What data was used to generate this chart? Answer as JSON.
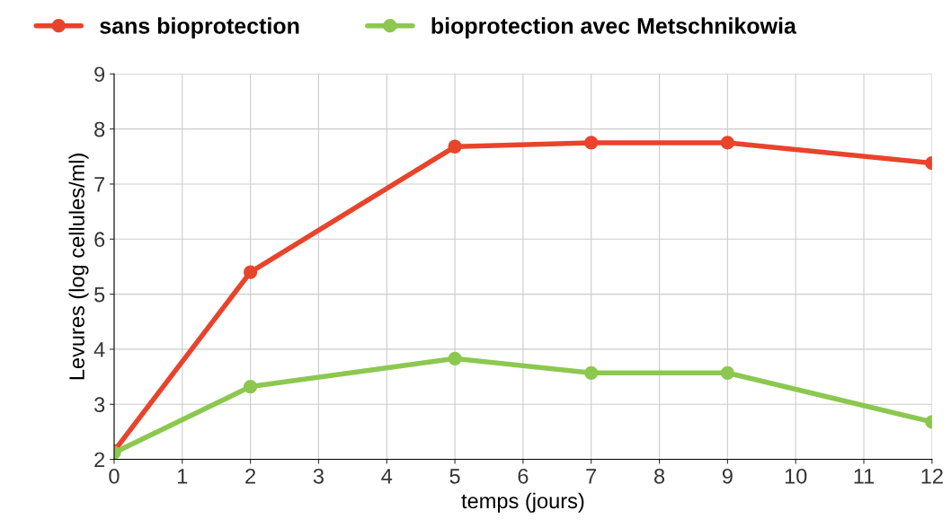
{
  "chart_data": {
    "type": "line",
    "xlabel": "temps (jours)",
    "ylabel": "Levures (log cellules/ml)",
    "x": [
      0,
      2,
      5,
      7,
      9,
      12
    ],
    "series": [
      {
        "name": "sans bioprotection",
        "color": "#e8442c",
        "values": [
          2.15,
          5.4,
          7.68,
          7.75,
          7.75,
          7.38
        ]
      },
      {
        "name": "bioprotection avec Metschnikowia",
        "color": "#8cc850",
        "values": [
          2.12,
          3.32,
          3.83,
          3.57,
          3.57,
          2.68
        ]
      }
    ],
    "xlim": [
      0,
      12
    ],
    "xticks": [
      0,
      1,
      2,
      3,
      4,
      5,
      6,
      7,
      8,
      9,
      10,
      11,
      12
    ],
    "ylim": [
      2,
      9
    ],
    "yticks": [
      2,
      3,
      4,
      5,
      6,
      7,
      8,
      9
    ],
    "grid": true,
    "legend": "top",
    "marker": "circle",
    "line_style": "solid"
  }
}
